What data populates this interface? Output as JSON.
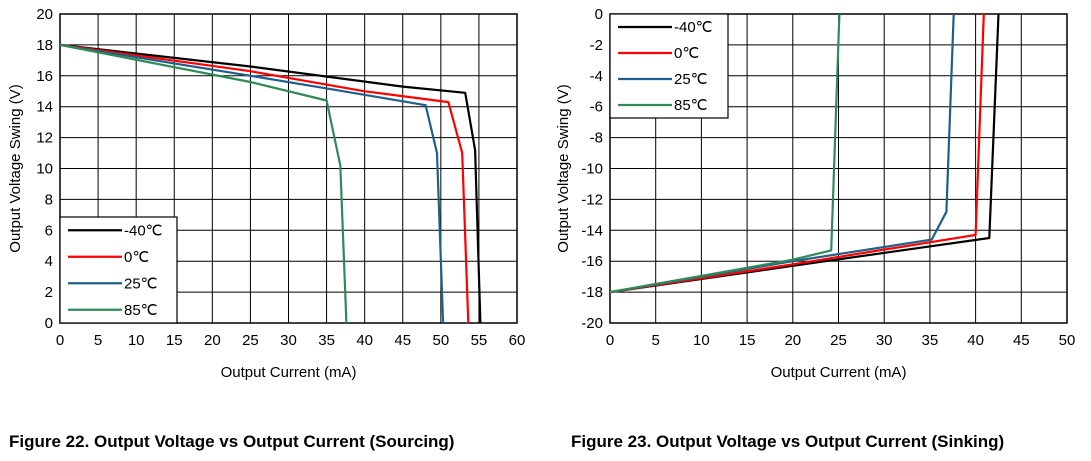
{
  "chart_data": [
    {
      "type": "line",
      "caption": "Figure 22. Output Voltage vs Output Current (Sourcing)",
      "xlabel": "Output Current (mA)",
      "ylabel": "Output Voltage Swing (V)",
      "xlim": [
        0,
        60
      ],
      "ylim": [
        0,
        20
      ],
      "xticks": [
        0,
        5,
        10,
        15,
        20,
        25,
        30,
        35,
        40,
        45,
        50,
        55,
        60
      ],
      "yticks": [
        0,
        2,
        4,
        6,
        8,
        10,
        12,
        14,
        16,
        18,
        20
      ],
      "grid": true,
      "legend": "bottom-left",
      "series": [
        {
          "name": "-40℃",
          "color": "#000000",
          "points": [
            [
              0,
              18
            ],
            [
              25,
              16.6
            ],
            [
              45,
              15.3
            ],
            [
              53.2,
              14.9
            ],
            [
              54.5,
              11.2
            ],
            [
              55.2,
              0
            ]
          ]
        },
        {
          "name": "0℃",
          "color": "#ff0000",
          "points": [
            [
              0,
              18
            ],
            [
              25,
              16.3
            ],
            [
              40,
              15.0
            ],
            [
              51.0,
              14.3
            ],
            [
              52.8,
              11.0
            ],
            [
              53.6,
              0
            ]
          ]
        },
        {
          "name": "25℃",
          "color": "#1f5f8b",
          "points": [
            [
              0,
              18
            ],
            [
              25,
              16.0
            ],
            [
              36,
              15.1
            ],
            [
              48.0,
              14.1
            ],
            [
              49.5,
              11.0
            ],
            [
              50.3,
              0
            ]
          ]
        },
        {
          "name": "85℃",
          "color": "#2e8b57",
          "points": [
            [
              0,
              18
            ],
            [
              25,
              15.6
            ],
            [
              35.0,
              14.4
            ],
            [
              36.8,
              10.2
            ],
            [
              37.6,
              0
            ]
          ]
        }
      ]
    },
    {
      "type": "line",
      "caption": "Figure 23. Output Voltage vs Output Current (Sinking)",
      "xlabel": "Output Current (mA)",
      "ylabel": "Output Voltage Swing (V)",
      "xlim": [
        0,
        50
      ],
      "ylim": [
        -20,
        0
      ],
      "xticks": [
        0,
        5,
        10,
        15,
        20,
        25,
        30,
        35,
        40,
        45,
        50
      ],
      "yticks": [
        0,
        -2,
        -4,
        -6,
        -8,
        -10,
        -12,
        -14,
        -16,
        -18,
        -20
      ],
      "grid": true,
      "legend": "top-left",
      "series": [
        {
          "name": "-40℃",
          "color": "#000000",
          "points": [
            [
              0,
              -18
            ],
            [
              20,
              -16.3
            ],
            [
              41.5,
              -14.5
            ],
            [
              42.5,
              0
            ]
          ]
        },
        {
          "name": "0℃",
          "color": "#ff0000",
          "points": [
            [
              0,
              -18
            ],
            [
              20,
              -16.2
            ],
            [
              40,
              -14.3
            ],
            [
              40.9,
              0
            ]
          ]
        },
        {
          "name": "25℃",
          "color": "#1f5f8b",
          "points": [
            [
              0,
              -18
            ],
            [
              20,
              -16.0
            ],
            [
              35.2,
              -14.6
            ],
            [
              36.8,
              -12.8
            ],
            [
              37.6,
              0
            ]
          ]
        },
        {
          "name": "85℃",
          "color": "#2e8b57",
          "points": [
            [
              0,
              -18
            ],
            [
              20,
              -15.9
            ],
            [
              24.2,
              -15.3
            ],
            [
              25.1,
              0
            ]
          ]
        }
      ]
    }
  ]
}
